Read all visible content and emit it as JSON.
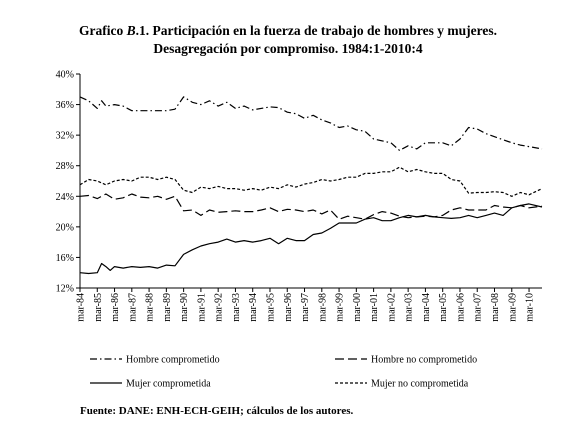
{
  "header": {
    "title_prefix": "Grafico ",
    "title_label": "B",
    "title_rest": ".1. Participación en la fuerza de trabajo de hombres y mujeres.",
    "subtitle": "Desagregación por compromiso. 1984:1-2010:4"
  },
  "footer": {
    "source": "Fuente: DANE: ENH-ECH-GEIH; cálculos de los autores."
  },
  "chart_data": {
    "type": "line",
    "ylim": [
      0.12,
      0.4
    ],
    "y_ticks": [
      "12%",
      "16%",
      "20%",
      "24%",
      "28%",
      "32%",
      "36%",
      "40%"
    ],
    "x_range": [
      1984.0,
      2010.75
    ],
    "x_tick_labels": [
      "mar-84",
      "mar-85",
      "mar-86",
      "mar-87",
      "mar-88",
      "mar-89",
      "mar-90",
      "mar-91",
      "mar-92",
      "mar-93",
      "mar-94",
      "mar-95",
      "mar-96",
      "mar-97",
      "mar-98",
      "mar-99",
      "mar-00",
      "mar-01",
      "mar-02",
      "mar-03",
      "mar-04",
      "mar-05",
      "mar-06",
      "mar-07",
      "mar-08",
      "mar-09",
      "mar-10"
    ],
    "legend_position": "bottom",
    "grid": false,
    "series": [
      {
        "name": "Hombre comprometido",
        "style": "dashdot",
        "points": [
          [
            1984.0,
            0.37
          ],
          [
            1984.5,
            0.365
          ],
          [
            1985.0,
            0.355
          ],
          [
            1985.25,
            0.365
          ],
          [
            1985.5,
            0.358
          ],
          [
            1986.0,
            0.36
          ],
          [
            1986.5,
            0.358
          ],
          [
            1987.0,
            0.352
          ],
          [
            1988.0,
            0.352
          ],
          [
            1989.0,
            0.352
          ],
          [
            1989.5,
            0.354
          ],
          [
            1990.0,
            0.37
          ],
          [
            1990.5,
            0.363
          ],
          [
            1991.0,
            0.36
          ],
          [
            1991.5,
            0.365
          ],
          [
            1992.0,
            0.358
          ],
          [
            1992.5,
            0.363
          ],
          [
            1993.0,
            0.355
          ],
          [
            1993.5,
            0.358
          ],
          [
            1994.0,
            0.353
          ],
          [
            1995.0,
            0.357
          ],
          [
            1995.5,
            0.356
          ],
          [
            1996.0,
            0.35
          ],
          [
            1996.5,
            0.348
          ],
          [
            1997.0,
            0.342
          ],
          [
            1997.5,
            0.346
          ],
          [
            1998.0,
            0.34
          ],
          [
            1998.5,
            0.336
          ],
          [
            1999.0,
            0.33
          ],
          [
            1999.5,
            0.332
          ],
          [
            2000.0,
            0.327
          ],
          [
            2000.5,
            0.325
          ],
          [
            2001.0,
            0.315
          ],
          [
            2002.0,
            0.31
          ],
          [
            2002.5,
            0.3
          ],
          [
            2003.0,
            0.306
          ],
          [
            2003.5,
            0.302
          ],
          [
            2004.0,
            0.31
          ],
          [
            2005.0,
            0.31
          ],
          [
            2005.5,
            0.306
          ],
          [
            2006.0,
            0.315
          ],
          [
            2006.5,
            0.33
          ],
          [
            2007.0,
            0.328
          ],
          [
            2007.5,
            0.322
          ],
          [
            2008.0,
            0.318
          ],
          [
            2008.5,
            0.314
          ],
          [
            2009.0,
            0.31
          ],
          [
            2009.5,
            0.307
          ],
          [
            2010.0,
            0.305
          ],
          [
            2010.75,
            0.302
          ]
        ]
      },
      {
        "name": "Hombre no comprometido",
        "style": "longdash",
        "points": [
          [
            1984.0,
            0.24
          ],
          [
            1984.5,
            0.241
          ],
          [
            1985.0,
            0.237
          ],
          [
            1985.5,
            0.243
          ],
          [
            1986.0,
            0.236
          ],
          [
            1986.5,
            0.238
          ],
          [
            1987.0,
            0.243
          ],
          [
            1987.5,
            0.239
          ],
          [
            1988.0,
            0.238
          ],
          [
            1988.5,
            0.24
          ],
          [
            1989.0,
            0.236
          ],
          [
            1989.5,
            0.24
          ],
          [
            1990.0,
            0.221
          ],
          [
            1990.5,
            0.222
          ],
          [
            1991.0,
            0.215
          ],
          [
            1991.5,
            0.222
          ],
          [
            1992.0,
            0.219
          ],
          [
            1992.5,
            0.22
          ],
          [
            1993.0,
            0.221
          ],
          [
            1993.5,
            0.22
          ],
          [
            1994.0,
            0.22
          ],
          [
            1994.5,
            0.222
          ],
          [
            1995.0,
            0.225
          ],
          [
            1995.5,
            0.22
          ],
          [
            1996.0,
            0.223
          ],
          [
            1996.5,
            0.222
          ],
          [
            1997.0,
            0.22
          ],
          [
            1997.5,
            0.222
          ],
          [
            1998.0,
            0.217
          ],
          [
            1998.5,
            0.222
          ],
          [
            1999.0,
            0.21
          ],
          [
            1999.5,
            0.214
          ],
          [
            2000.0,
            0.212
          ],
          [
            2000.5,
            0.21
          ],
          [
            2001.0,
            0.216
          ],
          [
            2001.5,
            0.22
          ],
          [
            2002.0,
            0.218
          ],
          [
            2002.5,
            0.214
          ],
          [
            2003.0,
            0.212
          ],
          [
            2003.5,
            0.213
          ],
          [
            2004.0,
            0.214
          ],
          [
            2004.5,
            0.213
          ],
          [
            2005.0,
            0.215
          ],
          [
            2005.5,
            0.222
          ],
          [
            2006.0,
            0.225
          ],
          [
            2006.5,
            0.222
          ],
          [
            2007.0,
            0.222
          ],
          [
            2007.5,
            0.222
          ],
          [
            2008.0,
            0.228
          ],
          [
            2008.5,
            0.226
          ],
          [
            2009.0,
            0.225
          ],
          [
            2009.5,
            0.228
          ],
          [
            2010.0,
            0.225
          ],
          [
            2010.75,
            0.227
          ]
        ]
      },
      {
        "name": "Mujer comprometida",
        "style": "solid",
        "points": [
          [
            1984.0,
            0.14
          ],
          [
            1984.5,
            0.139
          ],
          [
            1985.0,
            0.14
          ],
          [
            1985.25,
            0.152
          ],
          [
            1985.5,
            0.148
          ],
          [
            1985.75,
            0.143
          ],
          [
            1986.0,
            0.148
          ],
          [
            1986.5,
            0.146
          ],
          [
            1987.0,
            0.148
          ],
          [
            1987.5,
            0.147
          ],
          [
            1988.0,
            0.148
          ],
          [
            1988.5,
            0.146
          ],
          [
            1989.0,
            0.15
          ],
          [
            1989.5,
            0.149
          ],
          [
            1990.0,
            0.164
          ],
          [
            1990.5,
            0.17
          ],
          [
            1991.0,
            0.175
          ],
          [
            1991.5,
            0.178
          ],
          [
            1992.0,
            0.18
          ],
          [
            1992.5,
            0.184
          ],
          [
            1993.0,
            0.18
          ],
          [
            1993.5,
            0.182
          ],
          [
            1994.0,
            0.18
          ],
          [
            1994.5,
            0.182
          ],
          [
            1995.0,
            0.185
          ],
          [
            1995.5,
            0.178
          ],
          [
            1996.0,
            0.185
          ],
          [
            1996.5,
            0.182
          ],
          [
            1997.0,
            0.182
          ],
          [
            1997.5,
            0.19
          ],
          [
            1998.0,
            0.192
          ],
          [
            1998.5,
            0.198
          ],
          [
            1999.0,
            0.205
          ],
          [
            1999.5,
            0.205
          ],
          [
            2000.0,
            0.205
          ],
          [
            2000.5,
            0.21
          ],
          [
            2001.0,
            0.212
          ],
          [
            2001.5,
            0.208
          ],
          [
            2002.0,
            0.208
          ],
          [
            2002.5,
            0.212
          ],
          [
            2003.0,
            0.215
          ],
          [
            2003.5,
            0.213
          ],
          [
            2004.0,
            0.215
          ],
          [
            2004.5,
            0.213
          ],
          [
            2005.0,
            0.212
          ],
          [
            2005.5,
            0.211
          ],
          [
            2006.0,
            0.212
          ],
          [
            2006.5,
            0.215
          ],
          [
            2007.0,
            0.212
          ],
          [
            2007.5,
            0.215
          ],
          [
            2008.0,
            0.218
          ],
          [
            2008.5,
            0.215
          ],
          [
            2009.0,
            0.225
          ],
          [
            2009.5,
            0.228
          ],
          [
            2010.0,
            0.23
          ],
          [
            2010.75,
            0.226
          ]
        ]
      },
      {
        "name": "Mujer no comprometida",
        "style": "shortdash",
        "points": [
          [
            1984.0,
            0.255
          ],
          [
            1984.5,
            0.262
          ],
          [
            1985.0,
            0.26
          ],
          [
            1985.5,
            0.255
          ],
          [
            1986.0,
            0.26
          ],
          [
            1986.5,
            0.262
          ],
          [
            1987.0,
            0.26
          ],
          [
            1987.5,
            0.265
          ],
          [
            1988.0,
            0.265
          ],
          [
            1988.5,
            0.262
          ],
          [
            1989.0,
            0.265
          ],
          [
            1989.5,
            0.262
          ],
          [
            1990.0,
            0.248
          ],
          [
            1990.5,
            0.245
          ],
          [
            1991.0,
            0.252
          ],
          [
            1991.5,
            0.25
          ],
          [
            1992.0,
            0.253
          ],
          [
            1992.5,
            0.25
          ],
          [
            1993.0,
            0.25
          ],
          [
            1993.5,
            0.248
          ],
          [
            1994.0,
            0.25
          ],
          [
            1994.5,
            0.248
          ],
          [
            1995.0,
            0.252
          ],
          [
            1995.5,
            0.25
          ],
          [
            1996.0,
            0.255
          ],
          [
            1996.5,
            0.252
          ],
          [
            1997.0,
            0.256
          ],
          [
            1997.5,
            0.258
          ],
          [
            1998.0,
            0.262
          ],
          [
            1998.5,
            0.26
          ],
          [
            1999.0,
            0.262
          ],
          [
            1999.5,
            0.265
          ],
          [
            2000.0,
            0.265
          ],
          [
            2000.5,
            0.27
          ],
          [
            2001.0,
            0.27
          ],
          [
            2001.5,
            0.272
          ],
          [
            2002.0,
            0.272
          ],
          [
            2002.5,
            0.278
          ],
          [
            2003.0,
            0.272
          ],
          [
            2003.5,
            0.275
          ],
          [
            2004.0,
            0.272
          ],
          [
            2004.5,
            0.27
          ],
          [
            2005.0,
            0.27
          ],
          [
            2005.5,
            0.262
          ],
          [
            2006.0,
            0.26
          ],
          [
            2006.5,
            0.244
          ],
          [
            2007.0,
            0.245
          ],
          [
            2007.5,
            0.245
          ],
          [
            2008.0,
            0.246
          ],
          [
            2008.5,
            0.245
          ],
          [
            2009.0,
            0.24
          ],
          [
            2009.5,
            0.245
          ],
          [
            2010.0,
            0.242
          ],
          [
            2010.75,
            0.25
          ]
        ]
      }
    ]
  }
}
